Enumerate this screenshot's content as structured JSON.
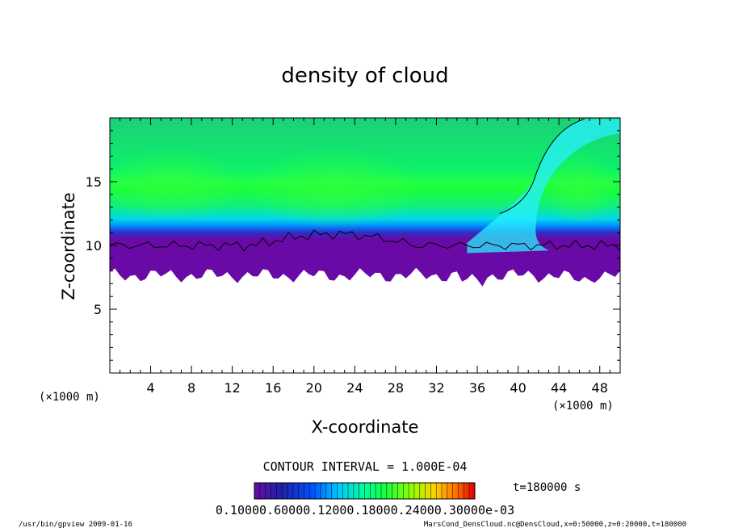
{
  "chart_data": {
    "type": "heatmap",
    "title": "density of cloud",
    "xlabel": "X-coordinate",
    "ylabel": "Z-coordinate",
    "x_unit": "(×1000 m)",
    "z_unit": "(×1000 m)",
    "xlim": [
      0,
      50
    ],
    "ylim": [
      0,
      20
    ],
    "x_ticks": [
      "4",
      "8",
      "12",
      "16",
      "20",
      "24",
      "28",
      "32",
      "36",
      "40",
      "44",
      "48"
    ],
    "y_ticks": [
      "5",
      "10",
      "15"
    ],
    "contour_interval_text": "CONTOUR INTERVAL = 1.000E-04",
    "time_label": "t=180000 s",
    "colorbar_labels_text": "0.10000.60000.12000.18000.24000.30000e-03",
    "colorbar_colors": [
      "#6a0aa6",
      "#2020a8",
      "#0050ff",
      "#00c8ff",
      "#00ff9a",
      "#1aff3a",
      "#9aff00",
      "#ffd000",
      "#ff6a00",
      "#e00000"
    ],
    "cloud_base_z": 8,
    "cloud_top_contour_z": 10,
    "cloud_top_z": 20
  },
  "footer": {
    "program": "/usr/bin/gpview   2009-01-16",
    "source": "MarsCond_DensCloud.nc@DensCloud,x=0:50000,z=0:20000,t=180000"
  }
}
